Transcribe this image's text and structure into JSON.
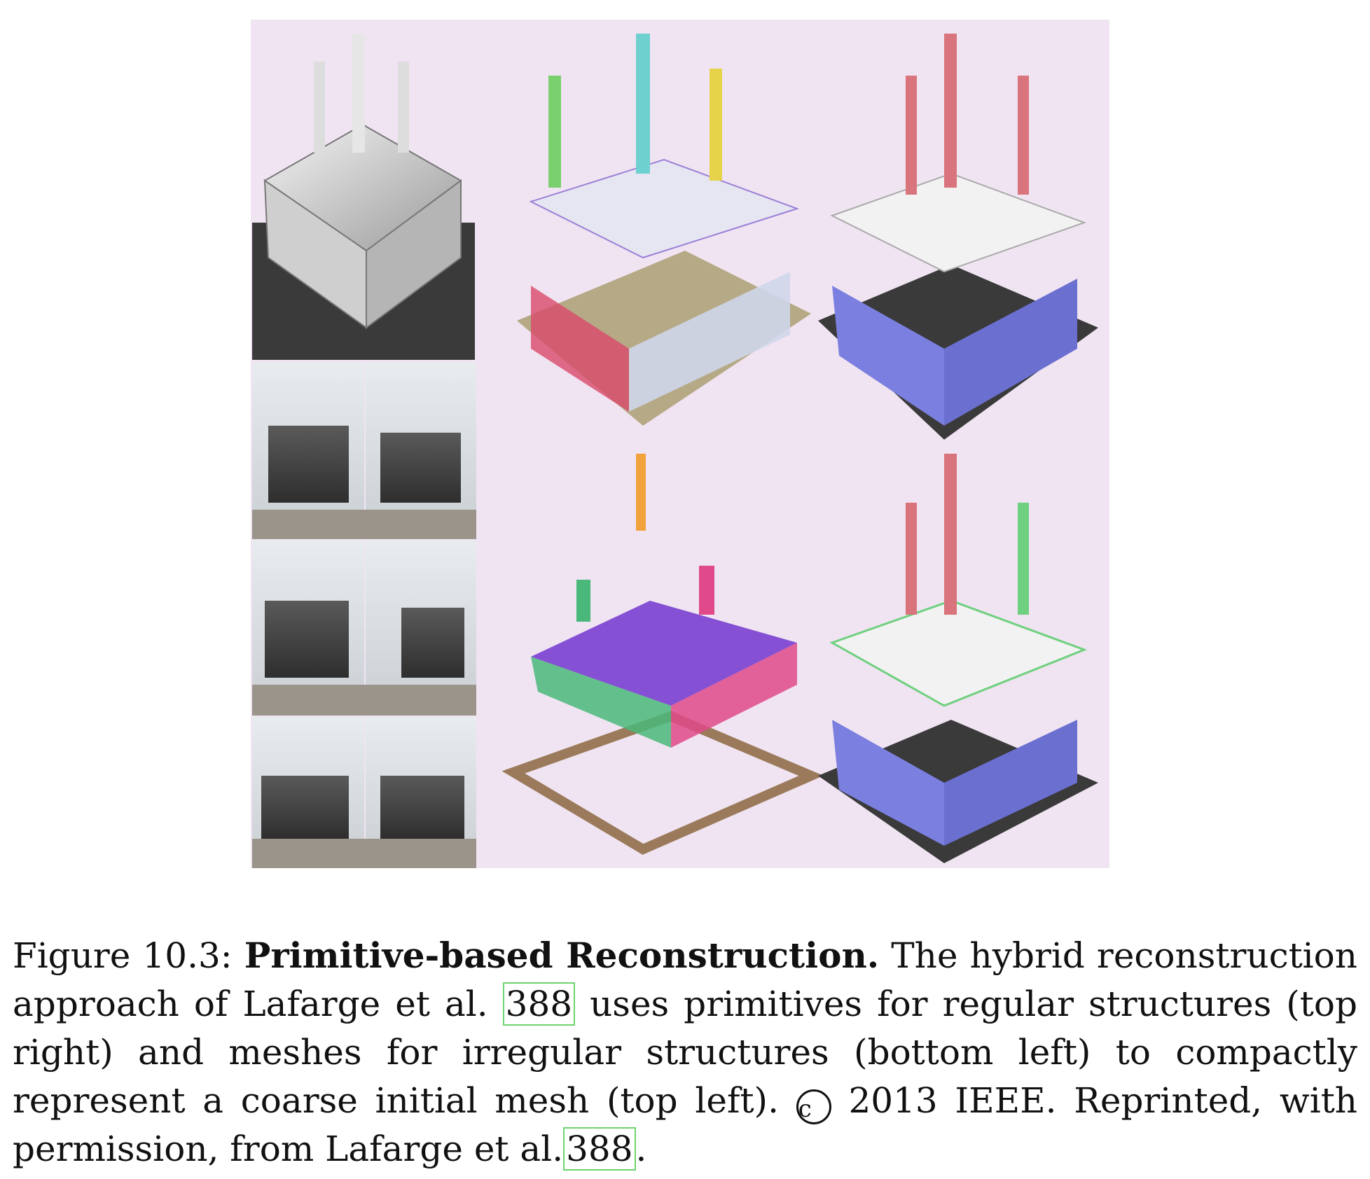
{
  "figure": {
    "panels": [
      {
        "name": "coarse-initial-mesh",
        "palette": [
          "#555555",
          "#e9e9e9"
        ]
      },
      {
        "name": "input-photos",
        "count": 6
      },
      {
        "name": "hybrid-segmentation",
        "palette": [
          "#d94a6a",
          "#9b7fd6",
          "#6fd0d0",
          "#e6d34a"
        ]
      },
      {
        "name": "primitive-model",
        "palette": [
          "#7b7fe0",
          "#d9747c",
          "#f2f2f2"
        ]
      },
      {
        "name": "mesh-irregular-structures",
        "palette": [
          "#7a3fd0",
          "#4ab87a",
          "#e04a8a",
          "#f2a23a"
        ]
      },
      {
        "name": "hybrid-model",
        "palette": [
          "#7b7fe0",
          "#6fd07f",
          "#f2f2f2"
        ]
      }
    ]
  },
  "caption": {
    "label": "Figure 10.3:",
    "title": "Primitive-based Reconstruction.",
    "text_1": "The hybrid reconstruction approach of Lafarge et al.",
    "cite_1": "388",
    "text_2": "uses primitives for regular structures (top right) and meshes for irregular structures (bottom left) to compactly represent a coarse initial mesh (top left).",
    "copyright_symbol": "c",
    "text_3": "2013 IEEE. Reprinted, with permission, from Lafarge et al.",
    "cite_2": "388",
    "text_4": "."
  }
}
